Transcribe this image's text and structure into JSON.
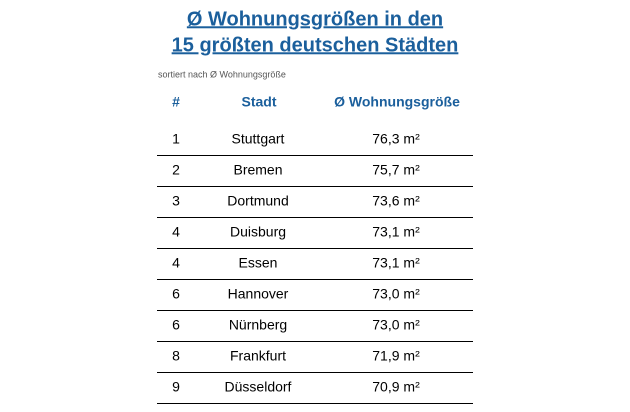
{
  "header": {
    "title_lines": [
      "Ø Wohnungsgrößen in den",
      "15 größten deutschen Städten"
    ],
    "subtitle": "sortiert nach Ø Wohnungsgröße"
  },
  "table": {
    "columns": [
      "#",
      "Stadt",
      "Ø Wohnungsgröße"
    ],
    "rows": [
      [
        "1",
        "Stuttgart",
        "76,3 m²"
      ],
      [
        "2",
        "Bremen",
        "75,7 m²"
      ],
      [
        "3",
        "Dortmund",
        "73,6 m²"
      ],
      [
        "4",
        "Duisburg",
        "73,1 m²"
      ],
      [
        "4",
        "Essen",
        "73,1 m²"
      ],
      [
        "6",
        "Hannover",
        "73,0 m²"
      ],
      [
        "6",
        "Nürnberg",
        "73,0 m²"
      ],
      [
        "8",
        "Frankfurt",
        "71,9 m²"
      ],
      [
        "9",
        "Düsseldorf",
        "70,9 m²"
      ]
    ]
  }
}
